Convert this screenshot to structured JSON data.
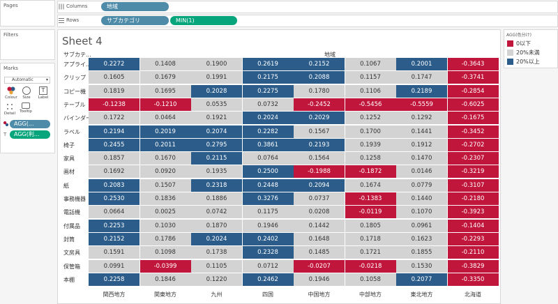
{
  "panels": {
    "pages_title": "Pages",
    "filters_title": "Filters",
    "marks_title": "Marks",
    "marks_type": "Automatic",
    "mark_buttons": [
      "Colour",
      "Size",
      "Label",
      "Detail",
      "Tooltip"
    ],
    "mark_pills": [
      "AGG(...",
      "AGG(利..."
    ]
  },
  "shelves": {
    "columns_label": "Columns",
    "rows_label": "Rows",
    "columns_pill": "地域",
    "rows_pills": [
      "サブカテゴリ",
      "MIN(1)"
    ]
  },
  "sheet": {
    "title": "Sheet 4",
    "row_header": "サブカテ...",
    "col_header": "地域",
    "columns": [
      "関西地方",
      "関東地方",
      "九州",
      "四国",
      "中国地方",
      "中部地方",
      "東北地方",
      "北海道"
    ],
    "rows": [
      {
        "label": "アプライ...",
        "values": [
          "0.2272",
          "0.1408",
          "0.1900",
          "0.2619",
          "0.2152",
          "0.1067",
          "0.2001",
          "-0.3643"
        ]
      },
      {
        "label": "クリップ",
        "values": [
          "0.1605",
          "0.1679",
          "0.1991",
          "0.2175",
          "0.2088",
          "0.1157",
          "0.1747",
          "-0.3741"
        ]
      },
      {
        "label": "コピー機",
        "values": [
          "0.1819",
          "0.1695",
          "0.2028",
          "0.2275",
          "0.1780",
          "0.1106",
          "0.2189",
          "-0.2854"
        ]
      },
      {
        "label": "テーブル",
        "values": [
          "-0.1238",
          "-0.1210",
          "0.0535",
          "0.0732",
          "-0.2452",
          "-0.5456",
          "-0.5559",
          "-0.6025"
        ]
      },
      {
        "label": "バインダー",
        "values": [
          "0.1722",
          "0.0464",
          "0.1921",
          "0.2024",
          "0.2029",
          "0.1252",
          "0.1292",
          "-0.1675"
        ]
      },
      {
        "label": "ラベル",
        "values": [
          "0.2194",
          "0.2019",
          "0.2074",
          "0.2282",
          "0.1567",
          "0.1700",
          "0.1441",
          "-0.3452"
        ]
      },
      {
        "label": "椅子",
        "values": [
          "0.2455",
          "0.2011",
          "0.2795",
          "0.3861",
          "0.2193",
          "0.1939",
          "0.1912",
          "-0.2702"
        ]
      },
      {
        "label": "家具",
        "values": [
          "0.1857",
          "0.1670",
          "0.2115",
          "0.0764",
          "0.1564",
          "0.1258",
          "0.1470",
          "-0.2307"
        ]
      },
      {
        "label": "画材",
        "values": [
          "0.1692",
          "0.0920",
          "0.1935",
          "0.2500",
          "-0.1988",
          "-0.1872",
          "0.0146",
          "-0.3219"
        ]
      },
      {
        "label": "紙",
        "values": [
          "0.2083",
          "0.1507",
          "0.2318",
          "0.2448",
          "0.2094",
          "0.1674",
          "0.0779",
          "-0.3107"
        ]
      },
      {
        "label": "事務機器",
        "values": [
          "0.2530",
          "0.1836",
          "0.1886",
          "0.3276",
          "0.0737",
          "-0.1383",
          "0.1440",
          "-0.2180"
        ]
      },
      {
        "label": "電話機",
        "values": [
          "0.0664",
          "0.0025",
          "0.0742",
          "0.1175",
          "0.0208",
          "-0.0119",
          "0.1070",
          "-0.3923"
        ]
      },
      {
        "label": "付属品",
        "values": [
          "0.2253",
          "0.1030",
          "0.1870",
          "0.1946",
          "0.1442",
          "0.1805",
          "0.0961",
          "-0.1404"
        ]
      },
      {
        "label": "封筒",
        "values": [
          "0.2152",
          "0.1786",
          "0.2024",
          "0.2402",
          "0.1648",
          "0.1718",
          "0.1623",
          "-0.2293"
        ]
      },
      {
        "label": "文房具",
        "values": [
          "0.1591",
          "0.1098",
          "0.1738",
          "0.2328",
          "0.1485",
          "0.1721",
          "0.1855",
          "-0.2110"
        ]
      },
      {
        "label": "保管箱",
        "values": [
          "0.0991",
          "-0.0399",
          "0.1105",
          "0.0712",
          "-0.0207",
          "-0.0218",
          "0.1530",
          "-0.3829"
        ]
      },
      {
        "label": "本棚",
        "values": [
          "0.2258",
          "0.1846",
          "0.1220",
          "0.2462",
          "0.1946",
          "0.1058",
          "0.2077",
          "-0.3350"
        ]
      }
    ]
  },
  "legend": {
    "title": "AGG(色分け)",
    "items": [
      {
        "label": "0以下",
        "color": "#c1163b"
      },
      {
        "label": "20%未満",
        "color": "#d3d3d3"
      },
      {
        "label": "20%以上",
        "color": "#2b5c8a"
      }
    ]
  }
}
